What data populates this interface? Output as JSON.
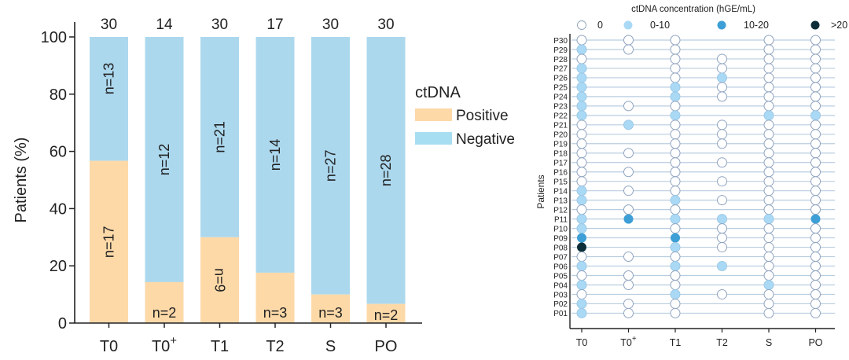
{
  "chart_data": [
    {
      "type": "bar",
      "stacked": true,
      "title": "",
      "xlabel": "",
      "ylabel": "Patients (%)",
      "ylim": [
        0,
        100
      ],
      "yticks": [
        "0",
        "20",
        "40",
        "60",
        "80",
        "100"
      ],
      "categories": [
        "T0",
        "T0",
        "T1",
        "T2",
        "S",
        "PO"
      ],
      "category_superscripts": [
        "",
        "+",
        "",
        "",
        "",
        ""
      ],
      "totals": [
        "30",
        "14",
        "30",
        "17",
        "30",
        "30"
      ],
      "series": [
        {
          "name": "Positive",
          "color": "#fdd9a8",
          "counts": [
            17,
            2,
            9,
            3,
            3,
            2
          ],
          "values": [
            56.7,
            14.3,
            30.0,
            17.6,
            10.0,
            6.7
          ],
          "labels": [
            "n=17",
            "n=2",
            "n=9",
            "n=3",
            "n=3",
            "n=2"
          ],
          "label_rotated": [
            true,
            false,
            true,
            false,
            false,
            false
          ]
        },
        {
          "name": "Negative",
          "color": "#acd8ee",
          "counts": [
            13,
            12,
            21,
            14,
            27,
            28
          ],
          "values": [
            43.3,
            85.7,
            70.0,
            82.4,
            90.0,
            93.3
          ],
          "labels": [
            "n=13",
            "n=12",
            "n=21",
            "n=14",
            "n=27",
            "n=28"
          ],
          "label_rotated": [
            true,
            true,
            true,
            true,
            true,
            true
          ]
        }
      ],
      "legend": {
        "title": "ctDNA",
        "placement": "right",
        "entries": [
          {
            "label": "Positive",
            "color": "#fdd9a8"
          },
          {
            "label": "Negative",
            "color": "#a8def2"
          }
        ]
      }
    },
    {
      "type": "scatter",
      "title": "ctDNA concentration (hGE/mL)",
      "xlabel": "",
      "ylabel": "Patients",
      "categories": [
        "T0",
        "T0",
        "T1",
        "T2",
        "S",
        "PO"
      ],
      "category_superscripts": [
        "",
        "+",
        "",
        "",
        "",
        ""
      ],
      "patients": [
        "P30",
        "P29",
        "P28",
        "P27",
        "P26",
        "P25",
        "P24",
        "P23",
        "P22",
        "P21",
        "P20",
        "P19",
        "P18",
        "P17",
        "P16",
        "P15",
        "P14",
        "P13",
        "P12",
        "P11",
        "P10",
        "P09",
        "P08",
        "P07",
        "P06",
        "P05",
        "P04",
        "P03",
        "P02",
        "P01"
      ],
      "legend": [
        {
          "level": 0,
          "label": "0",
          "fill": "#ffffff"
        },
        {
          "level": 1,
          "label": "0-10",
          "fill": "#a9d9f5"
        },
        {
          "level": 2,
          "label": "10-20",
          "fill": "#3d9fd6"
        },
        {
          "level": 3,
          "label": ">20",
          "fill": "#0c2e38"
        }
      ],
      "grid_note": "level per patient per timepoint; null = not sampled",
      "levels": {
        "P30": [
          0,
          0,
          0,
          null,
          0,
          0
        ],
        "P29": [
          1,
          0,
          0,
          null,
          0,
          0
        ],
        "P28": [
          0,
          null,
          0,
          0,
          0,
          0
        ],
        "P27": [
          1,
          null,
          0,
          0,
          0,
          0
        ],
        "P26": [
          1,
          null,
          0,
          1,
          0,
          0
        ],
        "P25": [
          1,
          null,
          1,
          0,
          0,
          0
        ],
        "P24": [
          1,
          null,
          1,
          0,
          0,
          0
        ],
        "P23": [
          1,
          0,
          0,
          null,
          0,
          0
        ],
        "P22": [
          1,
          null,
          1,
          null,
          1,
          1
        ],
        "P21": [
          0,
          1,
          0,
          0,
          0,
          0
        ],
        "P20": [
          0,
          null,
          0,
          0,
          0,
          0
        ],
        "P19": [
          0,
          null,
          0,
          0,
          0,
          0
        ],
        "P18": [
          0,
          0,
          0,
          null,
          0,
          0
        ],
        "P17": [
          0,
          null,
          0,
          0,
          0,
          0
        ],
        "P16": [
          0,
          0,
          0,
          null,
          0,
          0
        ],
        "P15": [
          0,
          null,
          0,
          0,
          0,
          0
        ],
        "P14": [
          1,
          0,
          0,
          null,
          0,
          0
        ],
        "P13": [
          1,
          null,
          1,
          0,
          0,
          0
        ],
        "P12": [
          0,
          0,
          0,
          null,
          0,
          0
        ],
        "P11": [
          1,
          2,
          1,
          1,
          1,
          2
        ],
        "P10": [
          1,
          null,
          0,
          0,
          0,
          0
        ],
        "P09": [
          2,
          null,
          2,
          0,
          0,
          0
        ],
        "P08": [
          3,
          null,
          1,
          0,
          0,
          0
        ],
        "P07": [
          0,
          0,
          0,
          null,
          0,
          0
        ],
        "P06": [
          1,
          null,
          1,
          1,
          0,
          0
        ],
        "P05": [
          0,
          0,
          0,
          null,
          0,
          0
        ],
        "P04": [
          1,
          0,
          0,
          null,
          1,
          0
        ],
        "P03": [
          0,
          null,
          1,
          0,
          0,
          0
        ],
        "P02": [
          1,
          0,
          0,
          null,
          0,
          0
        ],
        "P01": [
          1,
          0,
          0,
          null,
          0,
          0
        ]
      }
    }
  ]
}
